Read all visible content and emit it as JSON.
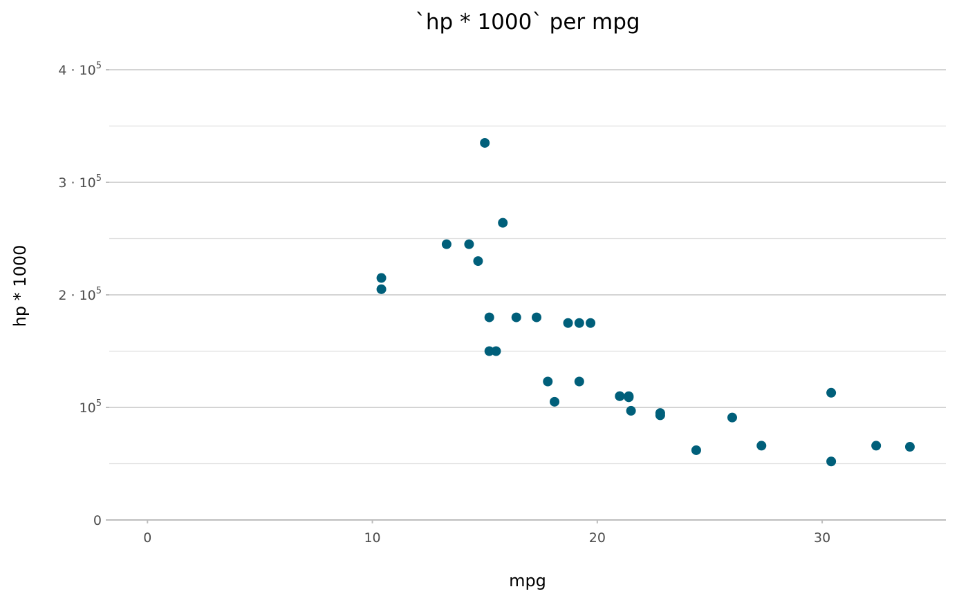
{
  "chart_data": {
    "type": "scatter",
    "title": "`hp * 1000` per mpg",
    "xlabel": "mpg",
    "ylabel": "hp * 1000",
    "xlim": [
      -1.7,
      35.5
    ],
    "ylim": [
      0,
      400000
    ],
    "x_ticks": [
      0,
      10,
      20,
      30
    ],
    "x_tick_labels": [
      "0",
      "10",
      "20",
      "30"
    ],
    "y_ticks": [
      0,
      100000,
      200000,
      300000,
      400000
    ],
    "y_tick_labels": [
      {
        "base": "0",
        "exp": ""
      },
      {
        "base": "10",
        "exp": "5"
      },
      {
        "base": "2 · 10",
        "exp": "5"
      },
      {
        "base": "3 · 10",
        "exp": "5"
      },
      {
        "base": "4 · 10",
        "exp": "5"
      }
    ],
    "grid": true,
    "point_color": "#005f7a",
    "x": [
      21.0,
      21.0,
      22.8,
      21.4,
      18.7,
      18.1,
      14.3,
      24.4,
      22.8,
      19.2,
      17.8,
      16.4,
      17.3,
      15.2,
      10.4,
      10.4,
      14.7,
      32.4,
      30.4,
      33.9,
      21.5,
      15.5,
      15.2,
      13.3,
      19.2,
      27.3,
      26.0,
      30.4,
      15.8,
      19.7,
      15.0,
      21.4
    ],
    "y": [
      110000,
      110000,
      93000,
      110000,
      175000,
      105000,
      245000,
      62000,
      95000,
      123000,
      123000,
      180000,
      180000,
      180000,
      205000,
      215000,
      230000,
      66000,
      52000,
      65000,
      97000,
      150000,
      150000,
      245000,
      175000,
      66000,
      91000,
      113000,
      264000,
      175000,
      335000,
      109000
    ]
  }
}
